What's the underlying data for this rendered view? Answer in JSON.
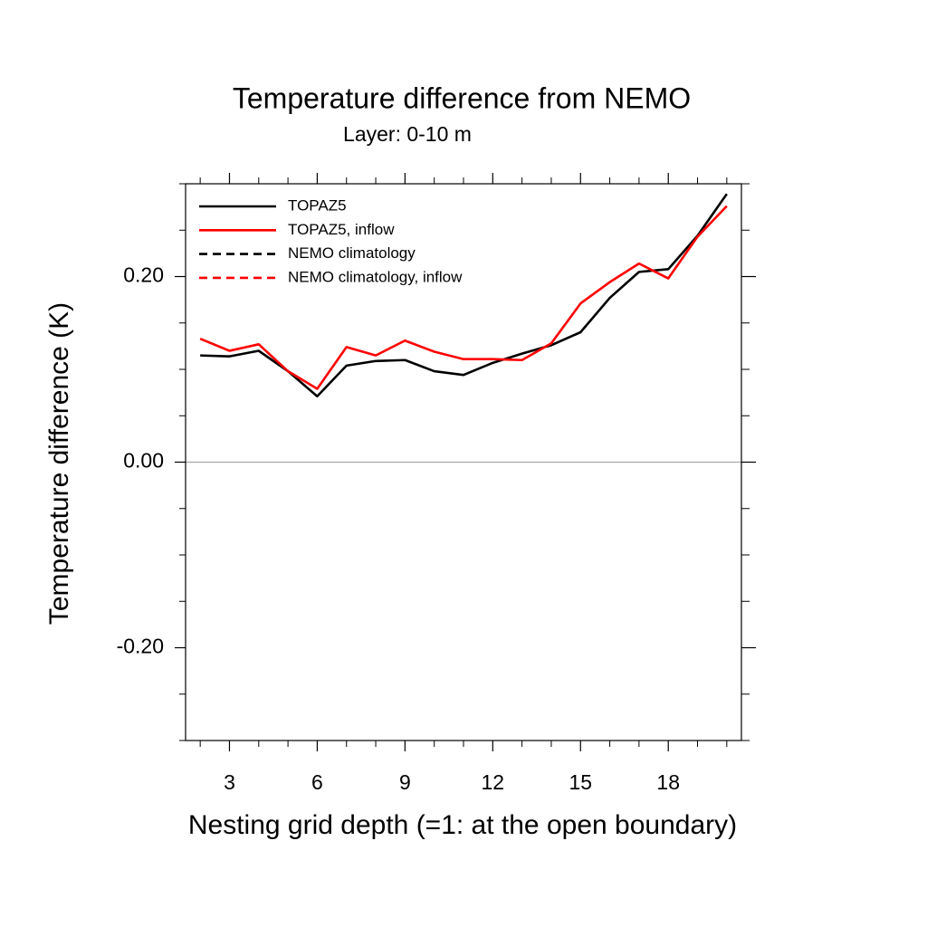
{
  "chart_data": {
    "type": "line",
    "title": "Temperature difference from NEMO",
    "subtitle": "Layer: 0-10 m",
    "x_label": "Nesting grid depth (=1: at the open boundary)",
    "y_label": "Temperature difference (K)",
    "x": [
      2,
      3,
      4,
      5,
      6,
      7,
      8,
      9,
      10,
      11,
      12,
      13,
      14,
      15,
      16,
      17,
      18,
      19,
      20
    ],
    "series": [
      {
        "name": "TOPAZ5",
        "color": "#000000",
        "dash": "solid",
        "values": [
          0.115,
          0.114,
          0.12,
          0.098,
          0.071,
          0.104,
          0.109,
          0.11,
          0.098,
          0.094,
          0.107,
          0.117,
          0.126,
          0.14,
          0.177,
          0.205,
          0.208,
          0.244,
          0.289
        ]
      },
      {
        "name": "TOPAZ5, inflow",
        "color": "#ff0000",
        "dash": "solid",
        "values": [
          0.133,
          0.12,
          0.127,
          0.098,
          0.079,
          0.124,
          0.115,
          0.131,
          0.119,
          0.111,
          0.111,
          0.11,
          0.128,
          0.171,
          0.194,
          0.214,
          0.198,
          0.243,
          0.276
        ]
      },
      {
        "name": "NEMO climatology",
        "color": "#000000",
        "dash": "dashed",
        "values": [
          null,
          null,
          null,
          null,
          null,
          null,
          null,
          null,
          null,
          null,
          null,
          null,
          null,
          null,
          null,
          null,
          null,
          null,
          null
        ]
      },
      {
        "name": "NEMO climatology, inflow",
        "color": "#ff0000",
        "dash": "dashed",
        "values": [
          null,
          null,
          null,
          null,
          null,
          null,
          null,
          null,
          null,
          null,
          null,
          null,
          null,
          null,
          null,
          null,
          null,
          null,
          null
        ]
      }
    ],
    "xlim": [
      1.5,
      20.5
    ],
    "ylim": [
      -0.3,
      0.3
    ],
    "xticks": [
      3,
      6,
      9,
      12,
      15,
      18
    ],
    "yticks": [
      {
        "value": -0.2,
        "label": "-0.20"
      },
      {
        "value": 0,
        "label": "0.00"
      },
      {
        "value": 0.2,
        "label": "0.20"
      }
    ],
    "xminorticks": [
      2,
      4,
      5,
      7,
      8,
      10,
      11,
      13,
      14,
      16,
      17,
      19,
      20
    ],
    "yminorticks": [
      -0.3,
      -0.25,
      -0.15,
      -0.1,
      -0.05,
      0.05,
      0.1,
      0.15,
      0.25,
      0.3
    ],
    "hline": 0,
    "hline_color": "#aaaaaa",
    "legend": "top-left"
  }
}
